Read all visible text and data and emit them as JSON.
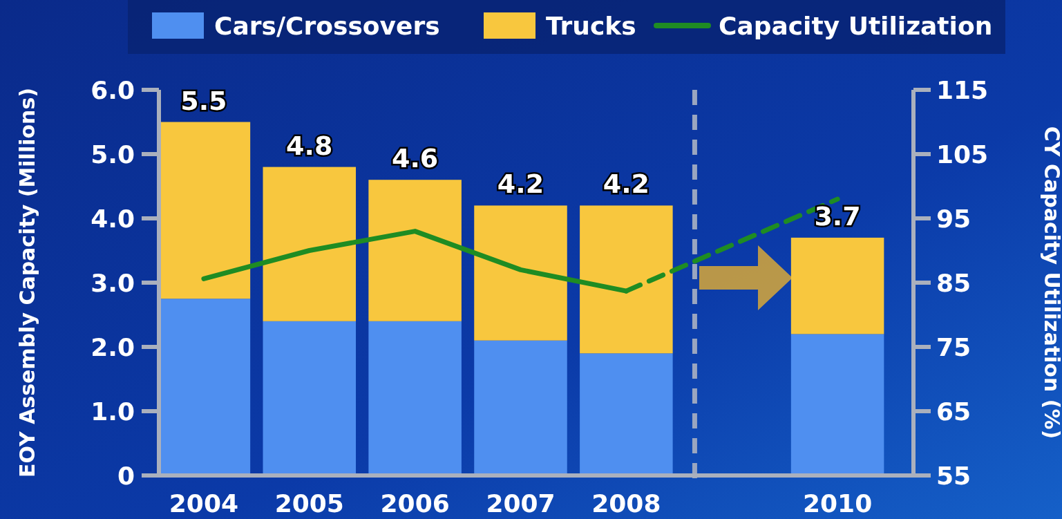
{
  "chart_data": {
    "type": "bar",
    "stacked": true,
    "categories": [
      "2004",
      "2005",
      "2006",
      "2007",
      "2008",
      null,
      "2010"
    ],
    "ylabel": "EOY Assembly Capacity (Millions)",
    "y2label": "CY Capacity Utilization (%)",
    "ylim": [
      0,
      6
    ],
    "yticks": [
      {
        "value": 0,
        "label": "0"
      },
      {
        "value": 1,
        "label": "1.0"
      },
      {
        "value": 2,
        "label": "2.0"
      },
      {
        "value": 3,
        "label": "3.0"
      },
      {
        "value": 4,
        "label": "4.0"
      },
      {
        "value": 5,
        "label": "5.0"
      },
      {
        "value": 6,
        "label": "6.0"
      }
    ],
    "y2lim": [
      55,
      115
    ],
    "y2ticks": [
      55,
      65,
      75,
      85,
      95,
      105,
      115
    ],
    "series": [
      {
        "name": "Cars/Crossovers",
        "color": "#4f8ff0",
        "values": [
          2.75,
          2.4,
          2.4,
          2.1,
          1.9,
          null,
          2.2
        ]
      },
      {
        "name": "Trucks",
        "color": "#f8c73e",
        "values": [
          2.75,
          2.4,
          2.2,
          2.1,
          2.3,
          null,
          1.5
        ]
      },
      {
        "name": "Capacity Utilization",
        "type": "line",
        "axis": "y2",
        "color": "#1f8c23",
        "line_style": "solid",
        "values": [
          85.6,
          90,
          93,
          87,
          83.7,
          null,
          null
        ]
      },
      {
        "type": "line",
        "axis": "y2",
        "color": "#1f8c23",
        "line_style": "dashed",
        "values": [
          null,
          null,
          null,
          null,
          83.7,
          null,
          98
        ]
      }
    ],
    "totals": [
      "5.5",
      "4.8",
      "4.6",
      "4.2",
      "4.2",
      null,
      "3.7"
    ],
    "legend": "top",
    "grid": false
  }
}
